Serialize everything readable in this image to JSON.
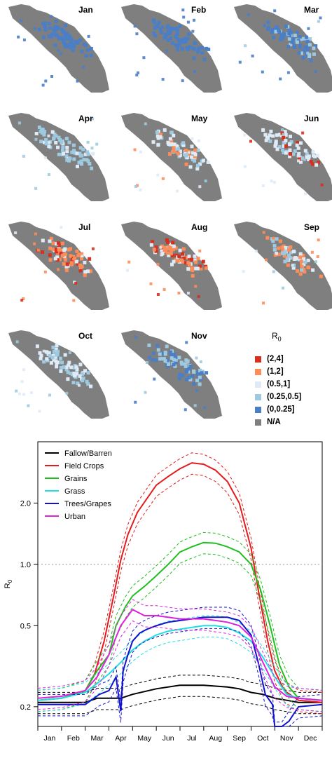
{
  "maps": {
    "months": [
      "Jan",
      "Feb",
      "Mar",
      "Apr",
      "May",
      "Jun",
      "Jul",
      "Aug",
      "Sep",
      "Oct",
      "Nov"
    ],
    "na_color": "#7f7f7f",
    "legend_title": "R",
    "legend_title_sub": "0",
    "legend": [
      {
        "label": "(2,4]",
        "color": "#d7301f"
      },
      {
        "label": "(1,2]",
        "color": "#fc8d59"
      },
      {
        "label": "(0.5,1]",
        "color": "#deebf7"
      },
      {
        "label": "(0.25,0.5]",
        "color": "#9ecae1"
      },
      {
        "label": "(0,0.25]",
        "color": "#4a7fc8"
      },
      {
        "label": "N/A",
        "color": "#7f7f7f"
      }
    ]
  },
  "chart_data": {
    "type": "line",
    "ylabel": "R",
    "ylabel_sub": "0",
    "yscale": "log",
    "ylim": [
      0.16,
      4.0
    ],
    "yticks": [
      0.2,
      0.5,
      1.0,
      2.0
    ],
    "ytick_labels": [
      "0.2",
      "0.5",
      "1.0",
      "2.0"
    ],
    "reference_line": 1.0,
    "x_categories": [
      "Jan",
      "Feb",
      "Mar",
      "Apr",
      "May",
      "Jun",
      "Jul",
      "Aug",
      "Sep",
      "Oct",
      "Nov",
      "Dec"
    ],
    "legend_position": "top-left",
    "series": [
      {
        "name": "Fallow/Barren",
        "color": "#000000",
        "x": [
          0,
          1,
          2,
          2.5,
          3,
          3.5,
          4,
          5,
          6,
          7,
          8,
          8.5,
          9,
          9.5,
          10,
          10.5,
          11,
          12
        ],
        "y": [
          0.21,
          0.21,
          0.21,
          0.22,
          0.22,
          0.22,
          0.23,
          0.245,
          0.255,
          0.255,
          0.25,
          0.245,
          0.235,
          0.23,
          0.22,
          0.215,
          0.21,
          0.21
        ]
      },
      {
        "name": "Field Crops",
        "color": "#e41a1c",
        "x": [
          0,
          1,
          2,
          2.4,
          2.8,
          3.2,
          3.5,
          3.8,
          4.2,
          4.6,
          5,
          5.5,
          6,
          6.5,
          7,
          7.5,
          8,
          8.5,
          9,
          9.3,
          9.7,
          10,
          10.4,
          11,
          12
        ],
        "y": [
          0.215,
          0.22,
          0.24,
          0.29,
          0.42,
          0.7,
          1.05,
          1.4,
          1.8,
          2.1,
          2.45,
          2.7,
          2.95,
          3.15,
          3.1,
          2.9,
          2.55,
          2.0,
          1.2,
          0.75,
          0.42,
          0.3,
          0.24,
          0.215,
          0.21
        ]
      },
      {
        "name": "Grains",
        "color": "#1fbf1f",
        "x": [
          0,
          1,
          2,
          2.5,
          3,
          3.3,
          3.7,
          4,
          4.5,
          5,
          5.5,
          6,
          6.5,
          7,
          7.5,
          8,
          8.5,
          9,
          9.4,
          9.8,
          10.2,
          10.6,
          11,
          12
        ],
        "y": [
          0.215,
          0.22,
          0.24,
          0.3,
          0.36,
          0.5,
          0.62,
          0.7,
          0.78,
          0.88,
          1.0,
          1.15,
          1.22,
          1.28,
          1.27,
          1.22,
          1.15,
          1.0,
          0.75,
          0.5,
          0.32,
          0.25,
          0.22,
          0.215
        ]
      },
      {
        "name": "Grass",
        "color": "#1fe0e0",
        "x": [
          0,
          1,
          2,
          2.5,
          3,
          3.5,
          4,
          4.5,
          5,
          5.5,
          6,
          6.5,
          7,
          7.5,
          8,
          8.5,
          9,
          9.5,
          10,
          10.5,
          11,
          12
        ],
        "y": [
          0.215,
          0.22,
          0.235,
          0.26,
          0.29,
          0.33,
          0.38,
          0.42,
          0.45,
          0.47,
          0.48,
          0.49,
          0.5,
          0.5,
          0.49,
          0.46,
          0.42,
          0.35,
          0.28,
          0.23,
          0.22,
          0.215
        ]
      },
      {
        "name": "Trees/Grapes",
        "color": "#1212cc",
        "x": [
          0,
          1,
          2,
          2.6,
          3,
          3.3,
          3.5,
          3.6,
          3.8,
          4,
          4.3,
          4.6,
          5,
          5.5,
          6,
          6.5,
          7,
          7.5,
          8,
          8.5,
          9,
          9.3,
          9.6,
          9.9,
          10,
          10.3,
          10.6,
          11,
          12
        ],
        "y": [
          0.205,
          0.205,
          0.205,
          0.23,
          0.24,
          0.28,
          0.19,
          0.3,
          0.36,
          0.42,
          0.46,
          0.48,
          0.5,
          0.52,
          0.53,
          0.54,
          0.55,
          0.55,
          0.55,
          0.53,
          0.45,
          0.33,
          0.23,
          0.205,
          0.15,
          0.15,
          0.17,
          0.2,
          0.205
        ]
      },
      {
        "name": "Urban",
        "color": "#dd22dd",
        "x": [
          0,
          1,
          2,
          2.5,
          3,
          3.5,
          4,
          4.5,
          5,
          5.5,
          6,
          6.5,
          7,
          7.5,
          8,
          8.5,
          9,
          9.5,
          10,
          10.5,
          11,
          12
        ],
        "y": [
          0.22,
          0.225,
          0.24,
          0.28,
          0.36,
          0.5,
          0.6,
          0.56,
          0.56,
          0.55,
          0.54,
          0.54,
          0.54,
          0.53,
          0.52,
          0.5,
          0.44,
          0.33,
          0.25,
          0.225,
          0.22,
          0.215
        ]
      }
    ]
  }
}
